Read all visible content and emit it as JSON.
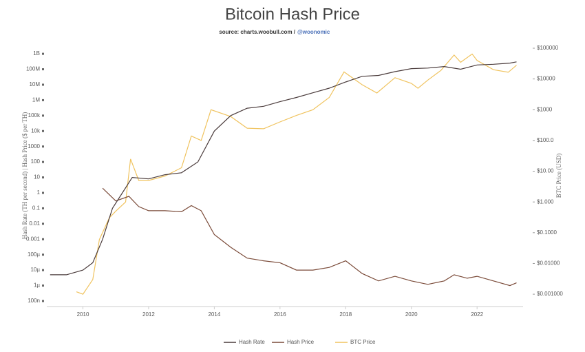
{
  "chart_data": {
    "type": "line",
    "title": "Bitcoin Hash Price",
    "subtitle": "source: charts.woobull.com /",
    "subtitle_link": "@woonomic",
    "y_label": "Hash Rate (TH per second) | Hash Price ($ per TH)",
    "y2_label": "BTC Price (USD)",
    "log_y": true,
    "log_y2": true,
    "grid": false,
    "legend": "bottom",
    "xlim": [
      2008.9,
      2023.4
    ],
    "xticks": [
      2010,
      2012,
      2014,
      2016,
      2018,
      2020,
      2022
    ],
    "ylim": [
      1e-07,
      2300000000.0
    ],
    "yticks": [
      {
        "value": 1000000000.0,
        "label": "1B"
      },
      {
        "value": 100000000.0,
        "label": "100M"
      },
      {
        "value": 10000000.0,
        "label": "10M"
      },
      {
        "value": 1000000.0,
        "label": "1M"
      },
      {
        "value": 100000.0,
        "label": "100k"
      },
      {
        "value": 10000.0,
        "label": "10k"
      },
      1000,
      100,
      10,
      1,
      0.1,
      0.01,
      0.001,
      {
        "value": 0.0001,
        "label": "100µ"
      },
      {
        "value": 1e-05,
        "label": "10µ"
      },
      {
        "value": 1e-06,
        "label": "1µ"
      },
      {
        "value": 1e-07,
        "label": "100n"
      }
    ],
    "y2lim": [
      0.0006,
      100000
    ],
    "y2ticks": [
      {
        "value": 100000,
        "label": "$100000"
      },
      {
        "value": 10000,
        "label": "$10000"
      },
      {
        "value": 1000,
        "label": "$1000"
      },
      {
        "value": 100,
        "label": "$100.0"
      },
      {
        "value": 10,
        "label": "$10.00"
      },
      {
        "value": 1,
        "label": "$1.000"
      },
      {
        "value": 0.1,
        "label": "$0.1000"
      },
      {
        "value": 0.01,
        "label": "$0.01000"
      },
      {
        "value": 0.001,
        "label": "$0.001000"
      }
    ],
    "series": [
      {
        "name": "Hash Rate",
        "color": "#4a3b3b",
        "x": [
          2009.0,
          2009.5,
          2010.0,
          2010.3,
          2010.6,
          2010.9,
          2011.2,
          2011.5,
          2012.0,
          2012.5,
          2013.0,
          2013.5,
          2014.0,
          2014.5,
          2015.0,
          2015.5,
          2016.0,
          2016.5,
          2017.0,
          2017.5,
          2018.0,
          2018.5,
          2019.0,
          2019.5,
          2020.0,
          2020.5,
          2021.0,
          2021.5,
          2022.0,
          2022.5,
          2023.0,
          2023.2
        ],
        "values": [
          5e-06,
          5e-06,
          1e-05,
          3e-05,
          0.001,
          0.1,
          1,
          10,
          8,
          15,
          20,
          100,
          10000,
          100000,
          300000,
          400000,
          800000,
          1500000,
          3000000,
          6000000,
          15000000,
          35000000,
          40000000,
          70000000,
          110000000,
          120000000,
          150000000,
          100000000,
          190000000,
          210000000,
          250000000,
          300000000
        ]
      },
      {
        "name": "Hash Price",
        "color": "#7a4a38",
        "x": [
          2010.6,
          2011.0,
          2011.4,
          2011.7,
          2012.0,
          2012.5,
          2013.0,
          2013.3,
          2013.6,
          2014.0,
          2014.5,
          2015.0,
          2015.5,
          2016.0,
          2016.5,
          2017.0,
          2017.5,
          2018.0,
          2018.5,
          2019.0,
          2019.5,
          2020.0,
          2020.5,
          2021.0,
          2021.3,
          2021.7,
          2022.0,
          2022.5,
          2023.0,
          2023.2
        ],
        "values": [
          2,
          0.3,
          0.6,
          0.13,
          0.07,
          0.07,
          0.06,
          0.15,
          0.07,
          0.002,
          0.0003,
          6e-05,
          4e-05,
          3e-05,
          1e-05,
          1e-05,
          1.5e-05,
          4e-05,
          6e-06,
          2e-06,
          4e-06,
          2e-06,
          1.2e-06,
          2e-06,
          5e-06,
          3e-06,
          4e-06,
          2e-06,
          1e-06,
          1.5e-06
        ]
      },
      {
        "name": "BTC Price",
        "color": "#f0c35e",
        "axis": "y2",
        "x": [
          2009.8,
          2010.0,
          2010.3,
          2010.5,
          2010.8,
          2011.0,
          2011.3,
          2011.45,
          2011.7,
          2012.0,
          2012.5,
          2013.0,
          2013.3,
          2013.6,
          2013.9,
          2014.5,
          2015.0,
          2015.5,
          2016.0,
          2016.5,
          2017.0,
          2017.5,
          2017.95,
          2018.5,
          2018.95,
          2019.5,
          2020.0,
          2020.2,
          2020.5,
          2020.9,
          2021.3,
          2021.5,
          2021.85,
          2022.0,
          2022.5,
          2022.95,
          2023.2
        ],
        "values": [
          0.0012,
          0.001,
          0.003,
          0.06,
          0.3,
          0.5,
          1,
          25,
          5,
          5,
          7,
          13,
          140,
          100,
          1000,
          600,
          250,
          240,
          400,
          650,
          1000,
          2500,
          17000,
          6500,
          3500,
          11000,
          7200,
          5000,
          9200,
          19000,
          60000,
          35000,
          65000,
          40000,
          20000,
          16500,
          28000
        ]
      }
    ]
  }
}
